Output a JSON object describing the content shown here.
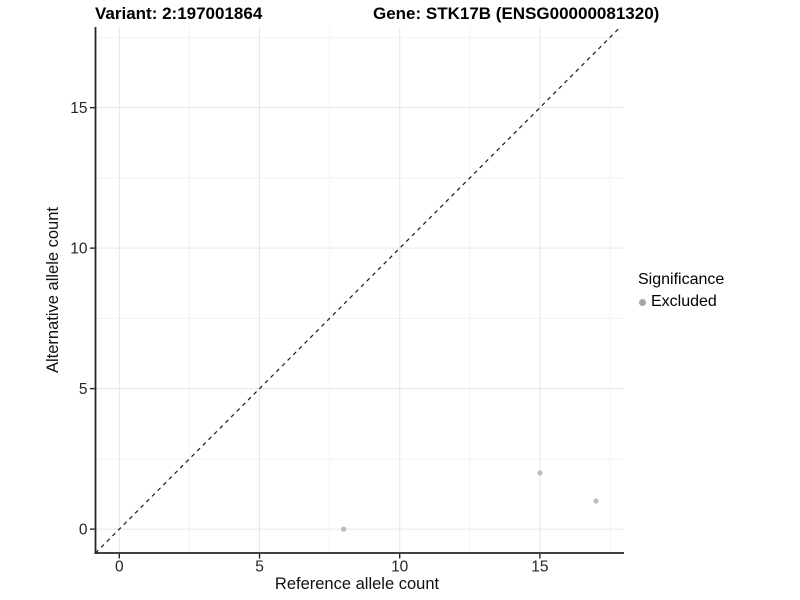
{
  "chart_data": {
    "type": "scatter",
    "title_left": "Variant: 2:197001864",
    "title_right": "Gene: STK17B (ENSG00000081320)",
    "xlabel": "Reference allele count",
    "ylabel": "Alternative allele count",
    "xlim": [
      -0.85,
      18.0
    ],
    "ylim": [
      -0.85,
      17.87
    ],
    "x_ticks": {
      "values": [
        0,
        5,
        10,
        15
      ],
      "labels": [
        "0",
        "5",
        "10",
        "15"
      ]
    },
    "y_ticks": {
      "values": [
        0,
        5,
        10,
        15
      ],
      "labels": [
        "0",
        "5",
        "10",
        "15"
      ]
    },
    "x_minor_ticks": [
      2.5,
      7.5,
      12.5,
      17.5
    ],
    "y_minor_ticks": [
      2.5,
      7.5,
      12.5,
      17.5
    ],
    "grid": "major and minor, light gray, white panel background",
    "identity_line": {
      "style": "dashed",
      "color": "#1a1a1a",
      "from": [
        -0.85,
        -0.85
      ],
      "to": [
        17.87,
        17.87
      ]
    },
    "series": [
      {
        "name": "Excluded",
        "color": "#bcbcbc",
        "points": [
          {
            "x": 8,
            "y": 0
          },
          {
            "x": 15,
            "y": 2
          },
          {
            "x": 17,
            "y": 1
          }
        ]
      }
    ],
    "legend": {
      "title": "Significance",
      "position": "right",
      "entries": [
        {
          "label": "Excluded",
          "color": "#a6a6a6"
        }
      ]
    },
    "colors": {
      "grid_major": "#e6e6e6",
      "grid_minor": "#f3f3f3",
      "axis_line": "#262626",
      "tick_label": "#262626"
    }
  }
}
